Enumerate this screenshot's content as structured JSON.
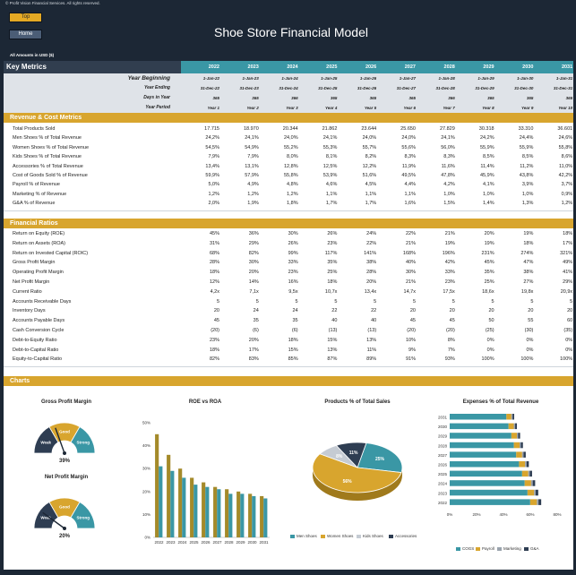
{
  "header": {
    "copyright": "© Profit Vision Financial Services. All rights reserved.",
    "top_button": "Top",
    "home_button": "Home",
    "title": "Shoe Store Financial Model",
    "amounts_label": "All Amounts in  USD ($)"
  },
  "key_metrics": {
    "title": "Key Metrics",
    "years": [
      "2022",
      "2023",
      "2024",
      "2025",
      "2026",
      "2027",
      "2028",
      "2029",
      "2030",
      "2031"
    ],
    "timeline": [
      {
        "label": "Year Beginning",
        "values": [
          "1-Jan-22",
          "1-Jan-23",
          "1-Jan-24",
          "1-Jan-25",
          "1-Jan-26",
          "1-Jan-27",
          "1-Jan-28",
          "1-Jan-29",
          "1-Jan-30",
          "1-Jan-31"
        ]
      },
      {
        "label": "Year Ending",
        "values": [
          "31-Dec-22",
          "31-Dec-23",
          "31-Dec-24",
          "31-Dec-25",
          "31-Dec-26",
          "31-Dec-27",
          "31-Dec-28",
          "31-Dec-29",
          "31-Dec-30",
          "31-Dec-31"
        ]
      },
      {
        "label": "Days in Year",
        "values": [
          "365",
          "365",
          "366",
          "365",
          "365",
          "365",
          "366",
          "365",
          "365",
          "365"
        ]
      },
      {
        "label": "Year Period",
        "values": [
          "Year 1",
          "Year 2",
          "Year 3",
          "Year 4",
          "Year 5",
          "Year 6",
          "Year 7",
          "Year 8",
          "Year 9",
          "Year 10"
        ]
      }
    ]
  },
  "revenue_cost": {
    "title": "Revenue & Cost Metrics",
    "rows": [
      {
        "label": "Total Products Sold",
        "values": [
          "17.715",
          "18.970",
          "20.344",
          "21.862",
          "23.644",
          "25.650",
          "27.829",
          "30.318",
          "33.310",
          "36.601"
        ]
      },
      {
        "label": "Men Shoes % of Total Revenue",
        "values": [
          "24,2%",
          "24,1%",
          "24,0%",
          "24,1%",
          "24,0%",
          "24,0%",
          "24,1%",
          "24,2%",
          "24,4%",
          "24,6%"
        ]
      },
      {
        "label": "Women Shoes % of Total Revenue",
        "values": [
          "54,5%",
          "54,9%",
          "55,2%",
          "55,3%",
          "55,7%",
          "55,6%",
          "56,0%",
          "55,9%",
          "55,9%",
          "55,8%"
        ]
      },
      {
        "label": "Kids Shoes % of Total Revenue",
        "values": [
          "7,9%",
          "7,9%",
          "8,0%",
          "8,1%",
          "8,2%",
          "8,3%",
          "8,3%",
          "8,5%",
          "8,5%",
          "8,6%"
        ]
      },
      {
        "label": "Accessories % of Total Revenue",
        "values": [
          "13,4%",
          "13,1%",
          "12,8%",
          "12,5%",
          "12,2%",
          "11,9%",
          "11,6%",
          "11,4%",
          "11,2%",
          "11,0%"
        ]
      },
      {
        "label": "Cost of Goods Sold % of Revenue",
        "values": [
          "59,9%",
          "57,9%",
          "55,8%",
          "53,9%",
          "51,6%",
          "49,5%",
          "47,8%",
          "45,9%",
          "43,8%",
          "42,2%"
        ]
      },
      {
        "label": "Payroll % of Revenue",
        "values": [
          "5,0%",
          "4,9%",
          "4,8%",
          "4,6%",
          "4,5%",
          "4,4%",
          "4,2%",
          "4,1%",
          "3,9%",
          "3,7%"
        ]
      },
      {
        "label": "Marketing % of Revenue",
        "values": [
          "1,2%",
          "1,2%",
          "1,2%",
          "1,1%",
          "1,1%",
          "1,1%",
          "1,0%",
          "1,0%",
          "1,0%",
          "0,9%"
        ]
      },
      {
        "label": "G&A % of Revenue",
        "values": [
          "2,0%",
          "1,9%",
          "1,8%",
          "1,7%",
          "1,7%",
          "1,6%",
          "1,5%",
          "1,4%",
          "1,3%",
          "1,2%"
        ]
      }
    ]
  },
  "financial_ratios": {
    "title": "Financial Ratios",
    "rows": [
      {
        "label": "Return on Equity (ROE)",
        "values": [
          "45%",
          "36%",
          "30%",
          "26%",
          "24%",
          "22%",
          "21%",
          "20%",
          "19%",
          "18%"
        ]
      },
      {
        "label": "Return on Assets (ROA)",
        "values": [
          "31%",
          "29%",
          "26%",
          "23%",
          "22%",
          "21%",
          "19%",
          "19%",
          "18%",
          "17%"
        ]
      },
      {
        "label": "Return on Invested Capital (ROIC)",
        "values": [
          "68%",
          "82%",
          "99%",
          "117%",
          "141%",
          "168%",
          "196%",
          "231%",
          "274%",
          "321%"
        ]
      },
      {
        "label": "Gross Profit Margin",
        "values": [
          "28%",
          "30%",
          "33%",
          "35%",
          "38%",
          "40%",
          "42%",
          "45%",
          "47%",
          "49%"
        ]
      },
      {
        "label": "Operating Profit Margin",
        "values": [
          "18%",
          "20%",
          "23%",
          "25%",
          "28%",
          "30%",
          "33%",
          "35%",
          "38%",
          "41%"
        ]
      },
      {
        "label": "Net Profit Margin",
        "values": [
          "12%",
          "14%",
          "16%",
          "18%",
          "20%",
          "21%",
          "23%",
          "25%",
          "27%",
          "29%"
        ]
      },
      {
        "label": "Current Ratio",
        "values": [
          "4,2x",
          "7,1x",
          "9,5x",
          "10,7x",
          "13,4x",
          "14,7x",
          "17,5x",
          "18,6x",
          "19,8x",
          "20,9x"
        ]
      },
      {
        "label": "Accounts Receivable Days",
        "values": [
          "5",
          "5",
          "5",
          "5",
          "5",
          "5",
          "5",
          "5",
          "5",
          "5"
        ]
      },
      {
        "label": "Inventory Days",
        "values": [
          "20",
          "24",
          "24",
          "22",
          "22",
          "20",
          "20",
          "20",
          "20",
          "20"
        ]
      },
      {
        "label": "Accounts Payable Days",
        "values": [
          "45",
          "35",
          "35",
          "40",
          "40",
          "45",
          "45",
          "50",
          "55",
          "60"
        ]
      },
      {
        "label": "Cash Conversion Cycle",
        "values": [
          "(20)",
          "(6)",
          "(6)",
          "(13)",
          "(13)",
          "(20)",
          "(20)",
          "(25)",
          "(30)",
          "(35)"
        ]
      },
      {
        "label": "Debt-to-Equity Ratio",
        "values": [
          "23%",
          "20%",
          "18%",
          "15%",
          "13%",
          "10%",
          "8%",
          "0%",
          "0%",
          "0%"
        ]
      },
      {
        "label": "Debt-to-Capital Ratio",
        "values": [
          "18%",
          "17%",
          "15%",
          "13%",
          "11%",
          "9%",
          "7%",
          "0%",
          "0%",
          "0%"
        ]
      },
      {
        "label": "Equity-to-Capital Ratio",
        "values": [
          "82%",
          "83%",
          "85%",
          "87%",
          "89%",
          "91%",
          "93%",
          "100%",
          "100%",
          "100%"
        ]
      }
    ]
  },
  "charts_section": {
    "title": "Charts"
  },
  "chart_data": [
    {
      "type": "gauge",
      "title": "Gross Profit Margin",
      "bands": [
        "Weak",
        "Good",
        "Strong"
      ],
      "value": 39,
      "value_label": "39%",
      "colors": [
        "#2e3d52",
        "#d8a52e",
        "#3a97a5"
      ]
    },
    {
      "type": "gauge",
      "title": "Net Profit Margin",
      "bands": [
        "Weak",
        "Good",
        "Strong"
      ],
      "value": 20,
      "value_label": "20%",
      "colors": [
        "#2e3d52",
        "#d8a52e",
        "#3a97a5"
      ]
    },
    {
      "type": "bar",
      "title": "ROE vs ROA",
      "categories": [
        "2022",
        "2023",
        "2024",
        "2025",
        "2026",
        "2027",
        "2028",
        "2029",
        "2030",
        "2031"
      ],
      "series": [
        {
          "name": "ROE",
          "values": [
            45,
            36,
            30,
            26,
            24,
            22,
            21,
            20,
            19,
            18
          ],
          "color": "#a48a2a"
        },
        {
          "name": "ROA",
          "values": [
            31,
            29,
            26,
            23,
            22,
            21,
            19,
            19,
            18,
            17
          ],
          "color": "#3a97a5"
        }
      ],
      "ylim": [
        0,
        50
      ],
      "yticks": [
        "0%",
        "10%",
        "20%",
        "30%",
        "40%",
        "50%"
      ]
    },
    {
      "type": "pie",
      "title": "Products % of Total Sales",
      "slices": [
        {
          "name": "Men Shoes",
          "value": 25,
          "label": "25%",
          "color": "#3a97a5"
        },
        {
          "name": "Women Shoes",
          "value": 56,
          "label": "56%",
          "color": "#d8a52e"
        },
        {
          "name": "Kids Shoes",
          "value": 8,
          "label": "8%",
          "color": "#c5cbd3"
        },
        {
          "name": "Accessories",
          "value": 11,
          "label": "11%",
          "color": "#2e3d52"
        }
      ]
    },
    {
      "type": "bar",
      "orientation": "horizontal-stacked",
      "title": "Expenses % of Total Revenue",
      "categories": [
        "2031",
        "2030",
        "2029",
        "2028",
        "2027",
        "2026",
        "2025",
        "2024",
        "2023",
        "2022"
      ],
      "series": [
        {
          "name": "COGS",
          "values": [
            42.2,
            43.8,
            45.9,
            47.8,
            49.5,
            51.6,
            53.9,
            55.8,
            57.9,
            59.9
          ],
          "color": "#3a97a5"
        },
        {
          "name": "Payroll",
          "values": [
            3.7,
            3.9,
            4.1,
            4.2,
            4.4,
            4.5,
            4.6,
            4.8,
            4.9,
            5.0
          ],
          "color": "#d8a52e"
        },
        {
          "name": "Marketing",
          "values": [
            0.9,
            1.0,
            1.0,
            1.0,
            1.1,
            1.1,
            1.1,
            1.2,
            1.2,
            1.2
          ],
          "color": "#9aa3ad"
        },
        {
          "name": "G&A",
          "values": [
            1.2,
            1.3,
            1.4,
            1.5,
            1.6,
            1.7,
            1.7,
            1.8,
            1.9,
            2.0
          ],
          "color": "#2e3d52"
        }
      ],
      "xlim": [
        0,
        80
      ],
      "xticks": [
        "0%",
        "20%",
        "40%",
        "60%",
        "80%"
      ]
    }
  ]
}
